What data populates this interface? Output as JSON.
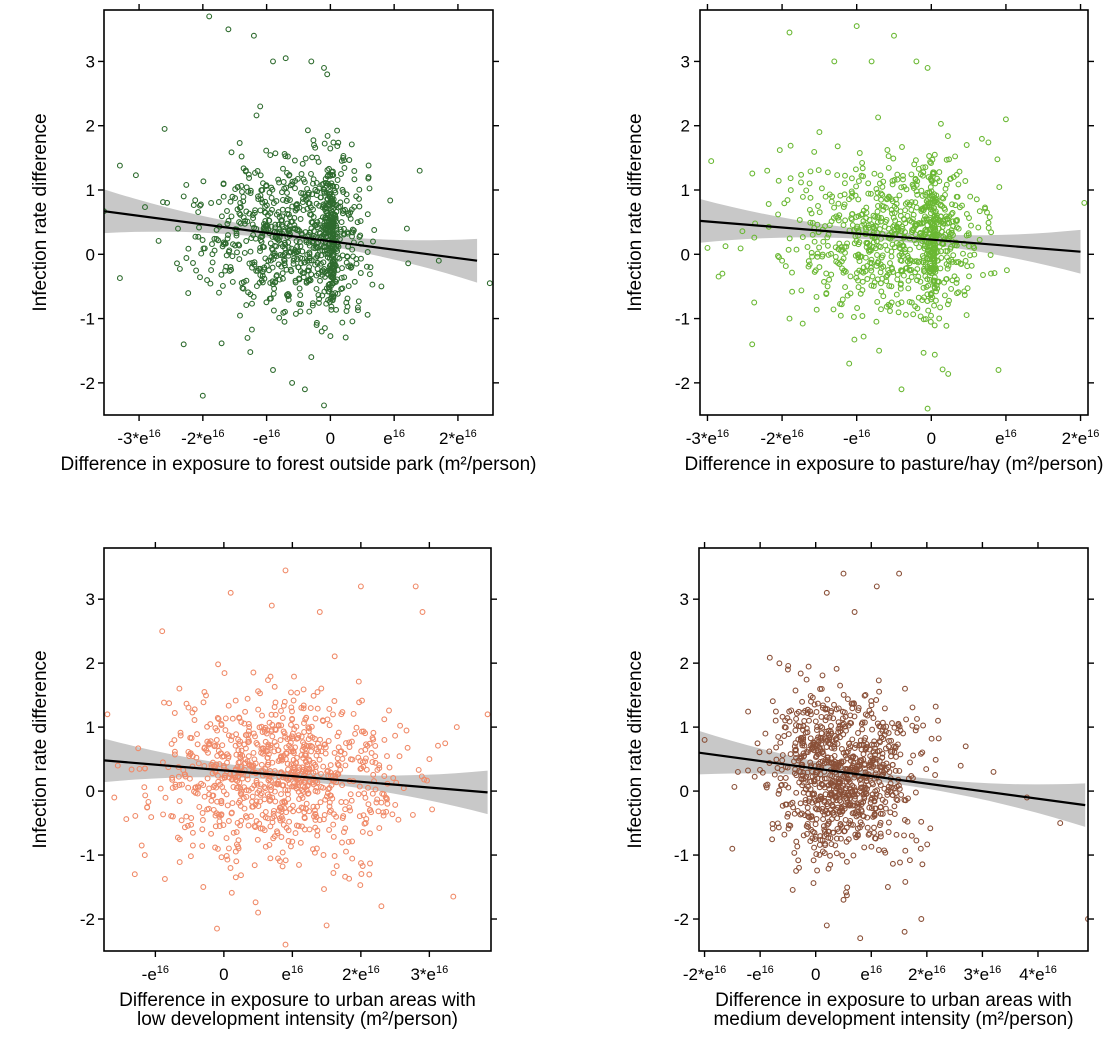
{
  "chart_data": [
    {
      "type": "scatter",
      "panel": "top-left",
      "xlabel_lines": [
        "Difference in exposure to forest outside park (m²/person)"
      ],
      "ylabel": "Infection rate difference",
      "x_unit": "e16",
      "xlim": [
        -3.55,
        2.55
      ],
      "ylim": [
        -2.5,
        3.8
      ],
      "x_ticks": [
        {
          "value": -3,
          "label": "-3*e",
          "sup": "16"
        },
        {
          "value": -2,
          "label": "-2*e",
          "sup": "16"
        },
        {
          "value": -1,
          "label": "-e",
          "sup": "16"
        },
        {
          "value": 0,
          "label": "0",
          "sup": ""
        },
        {
          "value": 1,
          "label": "e",
          "sup": "16"
        },
        {
          "value": 2,
          "label": "2*e",
          "sup": "16"
        }
      ],
      "y_ticks": [
        -2,
        -1,
        0,
        1,
        2,
        3
      ],
      "point_color": "#2e6b2e",
      "point_count": 900,
      "points": [
        [
          -3.55,
          0.67
        ],
        [
          -3.3,
          1.38
        ],
        [
          -3.3,
          -0.37
        ],
        [
          -3.05,
          1.23
        ],
        [
          -2.6,
          1.95
        ],
        [
          -2.3,
          -1.4
        ],
        [
          -2.3,
          0.9
        ],
        [
          -1.9,
          3.7
        ],
        [
          -1.6,
          3.5
        ],
        [
          -1.2,
          3.4
        ],
        [
          -1.1,
          2.3
        ],
        [
          -0.9,
          3.0
        ],
        [
          -0.7,
          3.05
        ],
        [
          -0.3,
          3.0
        ],
        [
          -0.1,
          2.9
        ],
        [
          -0.05,
          2.8
        ],
        [
          0.2,
          1.5
        ],
        [
          0.6,
          1.2
        ],
        [
          1.4,
          1.3
        ],
        [
          2.5,
          -0.45
        ],
        [
          -0.6,
          -2.0
        ],
        [
          -0.4,
          -2.1
        ],
        [
          -0.1,
          -2.35
        ],
        [
          -2.0,
          -2.2
        ],
        [
          -0.9,
          -1.8
        ],
        [
          -0.3,
          -1.6
        ],
        [
          -1.3,
          -1.3
        ],
        [
          0.8,
          -0.5
        ],
        [
          1.2,
          0.4
        ],
        [
          1.7,
          -0.1
        ]
      ],
      "trend": {
        "x": [
          -3.55,
          2.3
        ],
        "y": [
          0.67,
          -0.1
        ]
      },
      "band_color": "#c8c8c8"
    },
    {
      "type": "scatter",
      "panel": "top-right",
      "xlabel_lines": [
        "Difference in exposure to pasture/hay (m²/person)"
      ],
      "ylabel": "Infection rate difference",
      "x_unit": "e16",
      "xlim": [
        -3.1,
        2.1
      ],
      "ylim": [
        -2.5,
        3.8
      ],
      "x_ticks": [
        {
          "value": -3,
          "label": "-3*e",
          "sup": "16"
        },
        {
          "value": -2,
          "label": "-2*e",
          "sup": "16"
        },
        {
          "value": -1,
          "label": "-e",
          "sup": "16"
        },
        {
          "value": 0,
          "label": "0",
          "sup": ""
        },
        {
          "value": 1,
          "label": "e",
          "sup": "16"
        },
        {
          "value": 2,
          "label": "2*e",
          "sup": "16"
        }
      ],
      "y_ticks": [
        -2,
        -1,
        0,
        1,
        2,
        3
      ],
      "point_color": "#6ab833",
      "point_count": 900,
      "points": [
        [
          -3.0,
          0.1
        ],
        [
          -2.95,
          1.45
        ],
        [
          -2.8,
          -0.3
        ],
        [
          -2.4,
          -1.4
        ],
        [
          -2.2,
          1.3
        ],
        [
          -2.0,
          -0.1
        ],
        [
          -1.9,
          3.45
        ],
        [
          -1.5,
          1.9
        ],
        [
          -1.3,
          3.0
        ],
        [
          -1.0,
          3.55
        ],
        [
          -0.8,
          3.0
        ],
        [
          -0.5,
          3.4
        ],
        [
          -0.2,
          3.0
        ],
        [
          -0.05,
          2.9
        ],
        [
          0.3,
          1.2
        ],
        [
          0.8,
          -0.3
        ],
        [
          1.0,
          2.1
        ],
        [
          0.9,
          -1.8
        ],
        [
          2.05,
          0.8
        ],
        [
          -0.4,
          -2.1
        ],
        [
          -0.05,
          -2.4
        ],
        [
          -1.1,
          -1.7
        ],
        [
          -0.7,
          -1.5
        ],
        [
          -1.9,
          -1.0
        ],
        [
          -1.5,
          -0.2
        ]
      ],
      "trend": {
        "x": [
          -3.1,
          2.0
        ],
        "y": [
          0.52,
          0.04
        ]
      },
      "band_color": "#c8c8c8"
    },
    {
      "type": "scatter",
      "panel": "bottom-left",
      "xlabel_lines": [
        "Difference in exposure to urban areas with",
        "low development intensity (m²/person)"
      ],
      "ylabel": "Infection rate difference",
      "x_unit": "e16",
      "xlim": [
        -1.75,
        3.9
      ],
      "ylim": [
        -2.5,
        3.8
      ],
      "x_ticks": [
        {
          "value": -1,
          "label": "-e",
          "sup": "16"
        },
        {
          "value": 0,
          "label": "0",
          "sup": ""
        },
        {
          "value": 1,
          "label": "e",
          "sup": "16"
        },
        {
          "value": 2,
          "label": "2*e",
          "sup": "16"
        },
        {
          "value": 3,
          "label": "3*e",
          "sup": "16"
        }
      ],
      "y_ticks": [
        -2,
        -1,
        0,
        1,
        2,
        3
      ],
      "point_color": "#f08a68",
      "point_count": 900,
      "points": [
        [
          -1.7,
          1.2
        ],
        [
          -1.6,
          -0.1
        ],
        [
          -1.3,
          -1.3
        ],
        [
          -1.2,
          -0.85
        ],
        [
          -0.9,
          2.5
        ],
        [
          -0.1,
          -2.15
        ],
        [
          0.1,
          3.1
        ],
        [
          0.7,
          2.9
        ],
        [
          0.9,
          3.45
        ],
        [
          1.4,
          2.8
        ],
        [
          2.0,
          3.2
        ],
        [
          2.8,
          3.2
        ],
        [
          2.9,
          2.8
        ],
        [
          3.4,
          1.0
        ],
        [
          3.35,
          -1.65
        ],
        [
          3.85,
          1.2
        ],
        [
          0.9,
          -2.4
        ],
        [
          1.5,
          -2.1
        ],
        [
          2.3,
          -1.8
        ],
        [
          0.5,
          -1.9
        ],
        [
          -0.3,
          -1.5
        ],
        [
          3.0,
          0.5
        ]
      ],
      "trend": {
        "x": [
          -1.75,
          3.85
        ],
        "y": [
          0.48,
          -0.02
        ]
      },
      "band_color": "#c8c8c8"
    },
    {
      "type": "scatter",
      "panel": "bottom-right",
      "xlabel_lines": [
        "Difference in exposure to urban areas with",
        "medium development intensity (m²/person)"
      ],
      "ylabel": "Infection rate difference",
      "x_unit": "e16",
      "xlim": [
        -2.1,
        4.9
      ],
      "ylim": [
        -2.5,
        3.8
      ],
      "x_ticks": [
        {
          "value": -2,
          "label": "-2*e",
          "sup": "16"
        },
        {
          "value": -1,
          "label": "-e",
          "sup": "16"
        },
        {
          "value": 0,
          "label": "0",
          "sup": ""
        },
        {
          "value": 1,
          "label": "e",
          "sup": "16"
        },
        {
          "value": 2,
          "label": "2*e",
          "sup": "16"
        },
        {
          "value": 3,
          "label": "3*e",
          "sup": "16"
        },
        {
          "value": 4,
          "label": "4*e",
          "sup": "16"
        }
      ],
      "y_ticks": [
        -2,
        -1,
        0,
        1,
        2,
        3
      ],
      "point_color": "#8a5038",
      "point_count": 900,
      "points": [
        [
          -2.0,
          0.8
        ],
        [
          -1.5,
          -0.9
        ],
        [
          -1.4,
          0.3
        ],
        [
          -0.5,
          1.9
        ],
        [
          0.2,
          3.1
        ],
        [
          0.5,
          3.4
        ],
        [
          0.7,
          2.8
        ],
        [
          1.1,
          3.2
        ],
        [
          1.5,
          3.4
        ],
        [
          2.2,
          1.1
        ],
        [
          2.7,
          0.7
        ],
        [
          3.2,
          0.3
        ],
        [
          3.8,
          -0.1
        ],
        [
          4.9,
          -2.0
        ],
        [
          4.4,
          -0.5
        ],
        [
          0.2,
          -2.1
        ],
        [
          0.8,
          -2.3
        ],
        [
          1.6,
          -2.2
        ],
        [
          1.9,
          -2.0
        ],
        [
          -0.3,
          -1.2
        ],
        [
          0.5,
          -1.7
        ],
        [
          1.3,
          -1.5
        ]
      ],
      "trend": {
        "x": [
          -2.1,
          4.85
        ],
        "y": [
          0.6,
          -0.22
        ]
      },
      "band_color": "#c8c8c8"
    }
  ]
}
